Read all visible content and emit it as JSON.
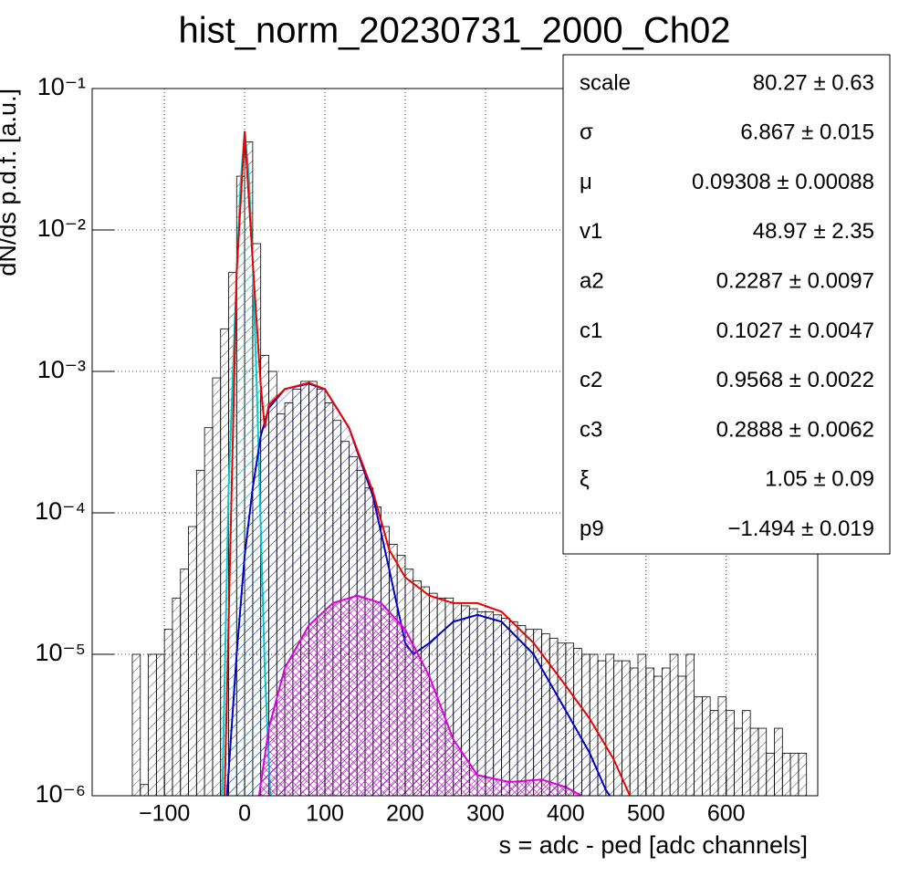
{
  "chart_data": {
    "type": "histogram",
    "title": "hist_norm_20230731_2000_Ch02",
    "x_label": "s = adc - ped [adc channels]",
    "y_label": "dN/ds p.d.f. [a.u.]",
    "log_y": true,
    "grid": true,
    "color": "#000000",
    "xlim": [
      -190,
      714
    ],
    "ylim": [
      1e-06,
      0.1
    ],
    "xticks": [
      {
        "value": -100,
        "label": "−100"
      },
      0,
      100,
      200,
      300,
      400,
      500,
      600
    ],
    "yticks": [
      {
        "value": 1e-06,
        "label": "10⁻⁶"
      },
      {
        "value": 1e-05,
        "label": "10⁻⁵"
      },
      {
        "value": 0.0001,
        "label": "10⁻⁴"
      },
      {
        "value": 0.001,
        "label": "10⁻³"
      },
      {
        "value": 0.01,
        "label": "10⁻²"
      },
      {
        "value": 0.1,
        "label": "10⁻¹"
      }
    ],
    "bins": [
      -140,
      -130,
      -120,
      -110,
      -100,
      -90,
      -80,
      -70,
      -60,
      -50,
      -40,
      -30,
      -20,
      -10,
      0,
      10,
      20,
      30,
      40,
      50,
      60,
      70,
      80,
      90,
      100,
      110,
      120,
      130,
      140,
      150,
      160,
      170,
      180,
      190,
      200,
      210,
      220,
      230,
      240,
      250,
      260,
      270,
      280,
      290,
      300,
      310,
      320,
      330,
      340,
      350,
      360,
      370,
      380,
      390,
      400,
      410,
      420,
      430,
      440,
      450,
      460,
      470,
      480,
      490,
      500,
      510,
      520,
      530,
      540,
      550,
      560,
      570,
      580,
      590,
      600,
      610,
      620,
      630,
      640,
      650,
      660,
      670,
      680,
      690,
      700
    ],
    "counts": [
      1e-05,
      1.2e-06,
      1e-05,
      1e-05,
      1.5e-05,
      2.5e-05,
      4e-05,
      8e-05,
      0.0002,
      0.0004,
      0.0009,
      0.002,
      0.005,
      0.024,
      0.042,
      0.008,
      0.0013,
      0.001,
      0.0005,
      0.0006,
      0.00075,
      0.00085,
      0.00085,
      0.00075,
      0.0006,
      0.00045,
      0.00032,
      0.00025,
      0.0002,
      0.00015,
      0.00011,
      8e-05,
      6e-05,
      5e-05,
      4e-05,
      3.3e-05,
      3e-05,
      2.7e-05,
      2.5e-05,
      2.5e-05,
      2.3e-05,
      2.2e-05,
      2.1e-05,
      2e-05,
      2e-05,
      1.9e-05,
      1.8e-05,
      1.7e-05,
      1.6e-05,
      1.5e-05,
      1.5e-05,
      1.4e-05,
      1.3e-05,
      1.2e-05,
      1.2e-05,
      1.1e-05,
      1e-05,
      1e-05,
      9e-06,
      1e-05,
      9e-06,
      9e-06,
      8e-06,
      1e-05,
      8e-06,
      7e-06,
      8e-06,
      1e-05,
      7e-06,
      1e-05,
      5e-06,
      5e-06,
      4e-06,
      5e-06,
      4e-06,
      3e-06,
      4e-06,
      3e-06,
      3e-06,
      2e-06,
      3e-06,
      2e-06,
      2e-06,
      2e-06
    ],
    "curves": [
      {
        "color": "#00cccc",
        "fill": true,
        "x": [
          -28,
          -20,
          -10,
          -5,
          0,
          5,
          10,
          15,
          20,
          25,
          32
        ],
        "values": [
          1e-06,
          0.00015,
          0.005,
          0.022,
          0.05,
          0.025,
          0.006,
          0.0008,
          8e-05,
          8e-06,
          1e-06
        ]
      },
      {
        "color": "#0000cc",
        "fill": true,
        "x": [
          -22,
          -10,
          0,
          10,
          20,
          30,
          50,
          80,
          100,
          130,
          160,
          180,
          200,
          210,
          230,
          260,
          290,
          320,
          360,
          400,
          430,
          450,
          455
        ],
        "values": [
          1e-06,
          1e-05,
          5e-05,
          0.00015,
          0.00035,
          0.00055,
          0.00075,
          0.00082,
          0.00075,
          0.0004,
          0.00013,
          4e-05,
          1.2e-05,
          1e-05,
          1.2e-05,
          1.7e-05,
          1.9e-05,
          1.7e-05,
          1e-05,
          4e-06,
          2e-06,
          1.1e-06,
          1e-06
        ]
      },
      {
        "color": "#dd00dd",
        "fill": true,
        "x": [
          18,
          30,
          50,
          80,
          110,
          140,
          170,
          200,
          230,
          260,
          290,
          330,
          370,
          400,
          420
        ],
        "values": [
          1e-06,
          3e-06,
          8e-06,
          1.6e-05,
          2.3e-05,
          2.6e-05,
          2.3e-05,
          1.5e-05,
          7e-06,
          2.5e-06,
          1.4e-06,
          1.25e-06,
          1.3e-06,
          1.15e-06,
          1e-06
        ]
      },
      {
        "color": "#ee0000",
        "fill": false,
        "x": [
          -25,
          -10,
          0,
          10,
          20,
          25,
          30,
          50,
          80,
          100,
          130,
          160,
          180,
          200,
          230,
          260,
          290,
          320,
          360,
          400,
          430,
          460,
          480
        ],
        "values": [
          1e-06,
          0.005,
          0.05,
          0.006,
          0.0008,
          0.0004,
          0.00058,
          0.00075,
          0.00083,
          0.00075,
          0.0004,
          0.00014,
          5.5e-05,
          3.5e-05,
          2.6e-05,
          2.3e-05,
          2.3e-05,
          2e-05,
          1.2e-05,
          6e-06,
          3.5e-06,
          1.8e-06,
          1e-06
        ]
      }
    ],
    "stats": [
      {
        "label": "scale",
        "value": "80.27 ± 0.63"
      },
      {
        "label": "σ",
        "value": "6.867 ± 0.015"
      },
      {
        "label": "μ",
        "value": "0.09308 ± 0.00088"
      },
      {
        "label": "v1",
        "value": "48.97 ± 2.35"
      },
      {
        "label": "a2",
        "value": "0.2287 ± 0.0097"
      },
      {
        "label": "c1",
        "value": "0.1027 ± 0.0047"
      },
      {
        "label": "c2",
        "value": "0.9568 ± 0.0022"
      },
      {
        "label": "c3",
        "value": "0.2888 ± 0.0062"
      },
      {
        "label": "ξ",
        "value": "1.05 ± 0.09"
      },
      {
        "label": "p9",
        "value": "−1.494 ± 0.019"
      }
    ]
  }
}
